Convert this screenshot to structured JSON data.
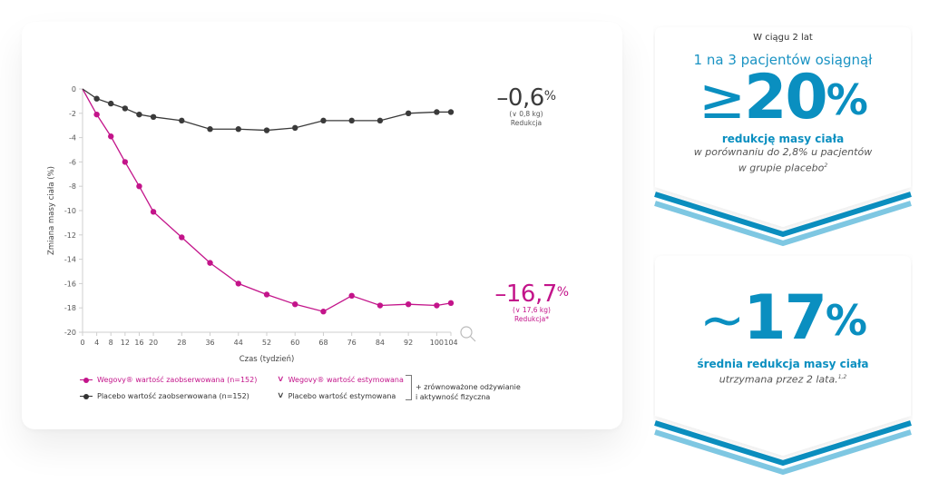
{
  "chart_data": {
    "type": "line",
    "title": "",
    "xlabel": "Czas (tydzień)",
    "ylabel": "Zmiana masy ciała (%)",
    "xlim": [
      0,
      104
    ],
    "ylim": [
      -20,
      0
    ],
    "x_ticks": [
      0,
      4,
      8,
      12,
      16,
      20,
      28,
      36,
      44,
      52,
      60,
      68,
      76,
      84,
      92,
      100,
      104
    ],
    "y_ticks": [
      0,
      -2,
      -4,
      -6,
      -8,
      -10,
      -12,
      -14,
      -16,
      -18,
      -20
    ],
    "grid": false,
    "series": [
      {
        "name": "Wegovy® wartość zaobserwowana (n=152)",
        "color": "#c3148a",
        "x": [
          0,
          4,
          8,
          12,
          16,
          20,
          28,
          36,
          44,
          52,
          60,
          68,
          76,
          84,
          92,
          100,
          104
        ],
        "y": [
          0,
          -2.1,
          -3.9,
          -6.0,
          -8.0,
          -10.1,
          -12.2,
          -14.3,
          -16.0,
          -16.9,
          -17.7,
          -18.3,
          -17.0,
          -17.8,
          -17.7,
          -17.8,
          -17.6
        ]
      },
      {
        "name": "Placebo wartość zaobserwowana (n=152)",
        "color": "#3a3a3a",
        "x": [
          0,
          4,
          8,
          12,
          16,
          20,
          28,
          36,
          44,
          52,
          60,
          68,
          76,
          84,
          92,
          100,
          104
        ],
        "y": [
          0,
          -0.8,
          -1.2,
          -1.6,
          -2.1,
          -2.3,
          -2.6,
          -3.3,
          -3.3,
          -3.4,
          -3.2,
          -2.6,
          -2.6,
          -2.6,
          -2.0,
          -1.9,
          -1.9
        ]
      }
    ],
    "annotations": {
      "placebo": {
        "value": "–0,6",
        "unit": "%",
        "kg": "(∨ 0,8 kg)",
        "label": "Redukcja"
      },
      "wegovy": {
        "value": "–16,7",
        "unit": "%",
        "kg": "(∨ 17,6 kg)",
        "label": "Redukcja*"
      }
    },
    "legend": {
      "placement": "bottom",
      "items": [
        {
          "label": "Wegovy® wartość zaobserwowana (n=152)",
          "style": "magenta-marker"
        },
        {
          "label": "Placebo wartość zaobserwowana (n=152)",
          "style": "dark-marker"
        },
        {
          "label": "Wegovy® wartość estymowana",
          "style": "magenta-chevron"
        },
        {
          "label": "Placebo wartość estymowana",
          "style": "dark-chevron"
        }
      ],
      "note_line1": "+ zrównoważone odżywianie",
      "note_line2": "i aktywność fizyczna"
    }
  },
  "icons": {
    "zoom": "magnifier-icon",
    "chevron": "∨"
  },
  "panels": {
    "first": {
      "eyebrow": "W ciągu 2 lat",
      "lead": "1 na 3 pacjentów osiągnął",
      "prefix": "≥",
      "number": "20",
      "unit": "%",
      "strong": "redukcję masy ciała",
      "muted1": "w porównaniu do 2,8% u pacjentów",
      "muted2": "w grupie placebo",
      "sup": "2"
    },
    "second": {
      "prefix": "~",
      "number": "17",
      "unit": "%",
      "strong": "średnia redukcja masy ciała",
      "muted": "utrzymana przez 2 lata.",
      "sup": "1,2"
    }
  },
  "colors": {
    "wegovy": "#c3148a",
    "placebo": "#3a3a3a",
    "accent": "#0a8fc0",
    "accent_light": "#7ec7e2"
  }
}
